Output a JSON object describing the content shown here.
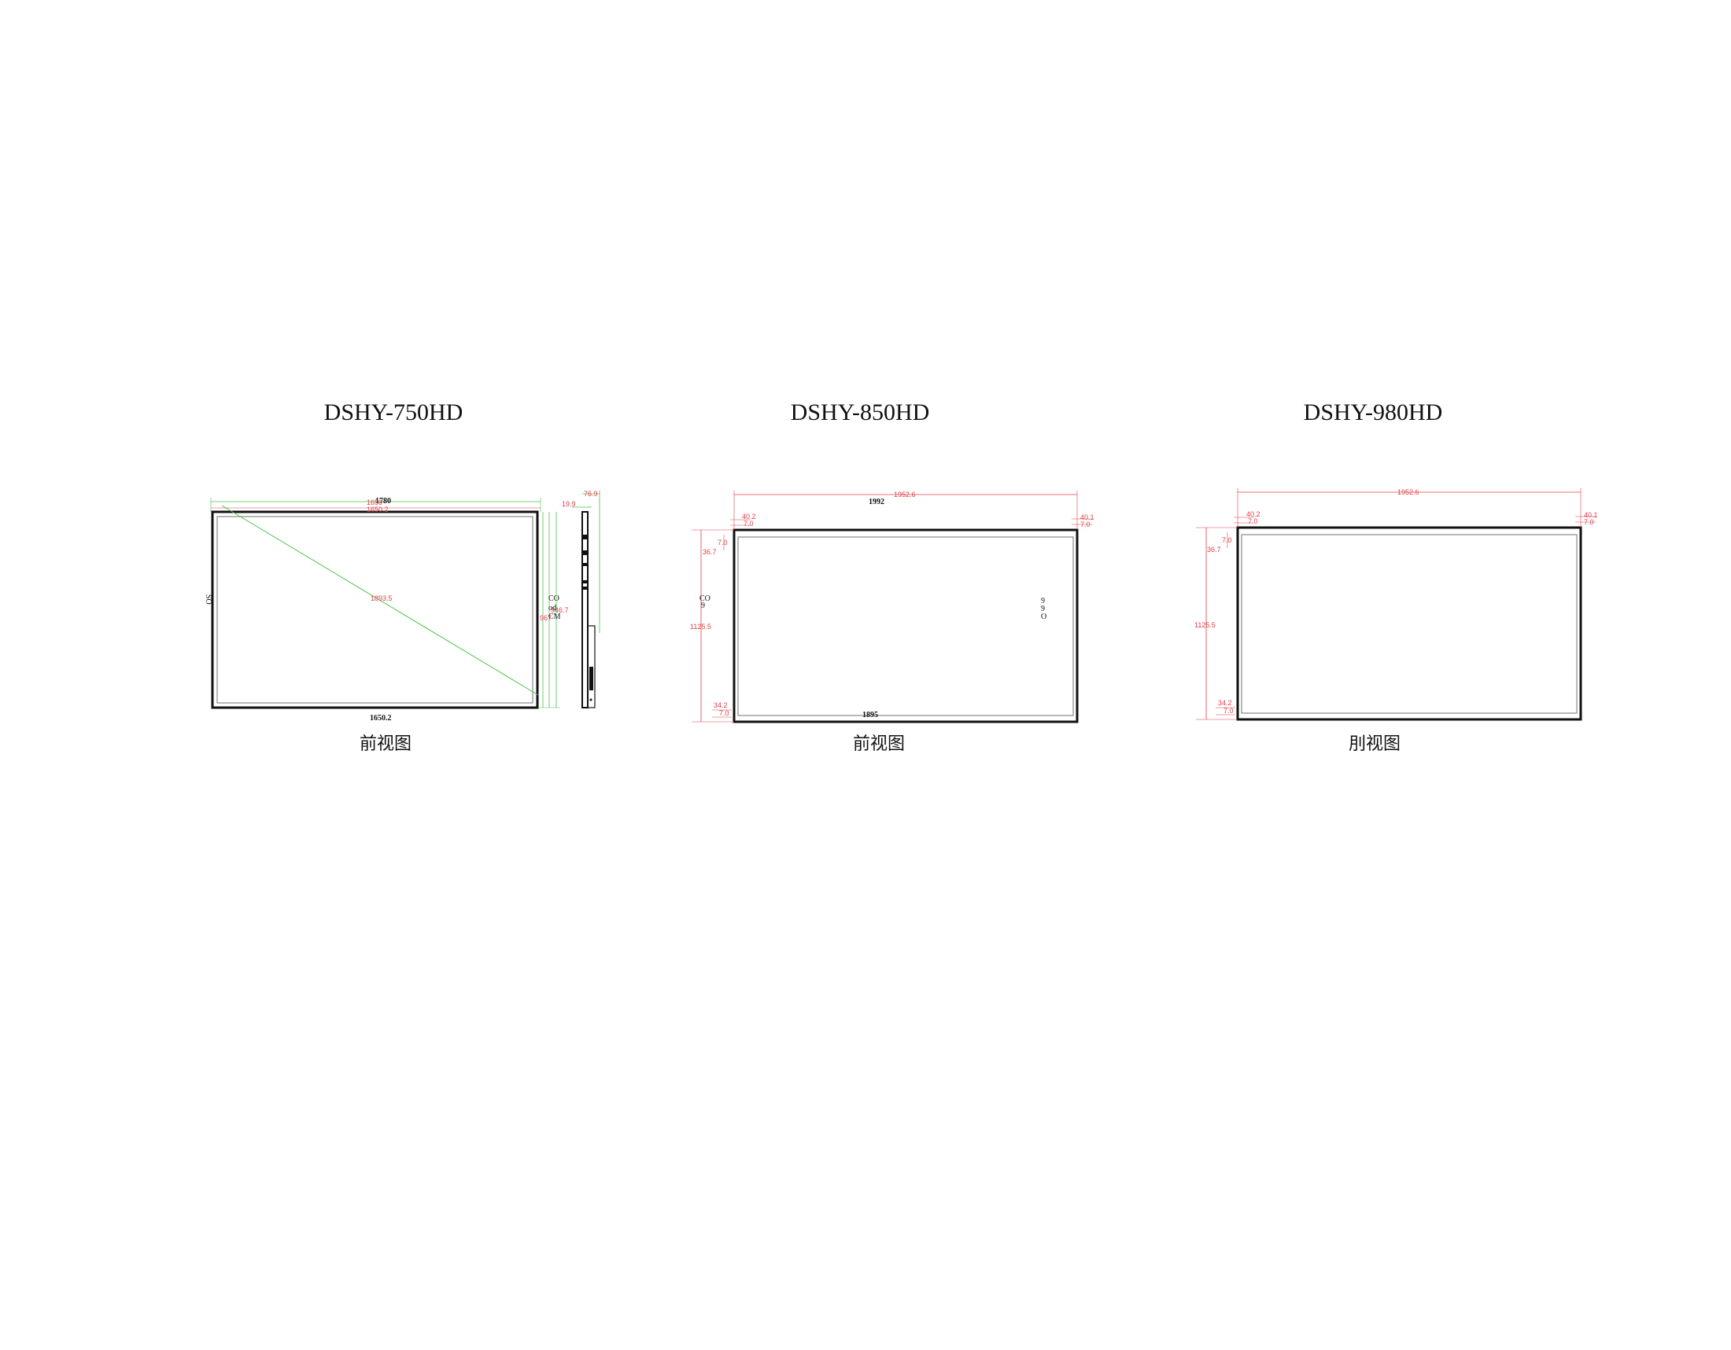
{
  "panels": [
    {
      "model": "DSHY-750HD",
      "caption": "前视图",
      "dims": {
        "width_outer": "1780",
        "width_top_a": "1650",
        "width_top_b": "1650.2",
        "width_bottom": "1650.2",
        "diagonal": "1893.5",
        "depth": "76.9",
        "side_offset": "19.9",
        "height_inner": "967",
        "height_inner_b": "946.7",
        "left_mark": "SO",
        "right_mark_1": "CO",
        "right_mark_2": "od",
        "right_mark_3": "CM"
      }
    },
    {
      "model": "DSHY-850HD",
      "caption": "前视图",
      "dims": {
        "width_red": "1952.6",
        "width_outer": "1992",
        "width_bottom": "1895",
        "top_left_a": "40.2",
        "top_left_b": "7.0",
        "top_right_a": "40.1",
        "top_right_b": "7.0",
        "left_a": "36.7",
        "left_b": "7.0",
        "height": "1125.5",
        "bottom_left_a": "34.2",
        "bottom_left_b": "7.0",
        "left_mark_1": "CO",
        "left_mark_2": "9",
        "right_mark_1": "9",
        "right_mark_2": "9",
        "right_mark_3": "O"
      }
    },
    {
      "model": "DSHY-980HD",
      "caption": "刖视图",
      "dims": {
        "width_red": "1952.6",
        "top_left_a": "40.2",
        "top_left_b": "7.0",
        "top_right_a": "40.1",
        "top_right_b": "7.0",
        "left_a": "36.7",
        "left_b": "7.0",
        "height": "1125.5",
        "bottom_left_a": "34.2",
        "bottom_left_b": "7.0"
      }
    }
  ],
  "colors": {
    "dimension_red": "#e0404a",
    "dimension_green": "#4cc24c",
    "outline": "#111111",
    "inner_outline": "#888888"
  }
}
